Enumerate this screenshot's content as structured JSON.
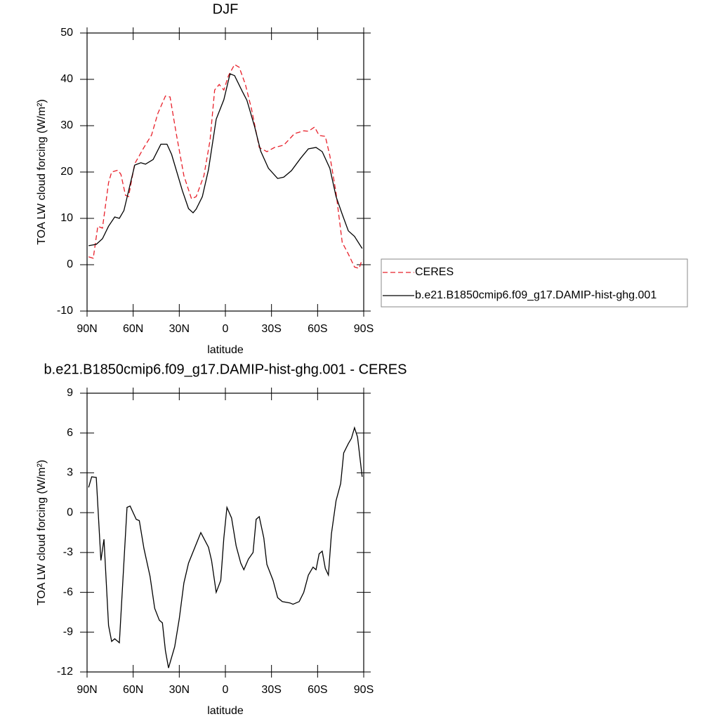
{
  "chart_data": [
    {
      "type": "line",
      "title": "DJF",
      "xlabel": "latitude",
      "ylabel": "TOA LW cloud forcing (W/m²)",
      "xlim": [
        90,
        -90
      ],
      "xticks": [
        {
          "value": 90,
          "label": "90N"
        },
        {
          "value": 60,
          "label": "60N"
        },
        {
          "value": 30,
          "label": "30N"
        },
        0,
        {
          "value": -30,
          "label": "30S"
        },
        {
          "value": -60,
          "label": "60S"
        },
        {
          "value": -90,
          "label": "90S"
        }
      ],
      "ylim": [
        -10,
        50
      ],
      "yticks": [
        -10,
        0,
        10,
        20,
        30,
        40,
        50
      ],
      "legend": "right",
      "series": [
        {
          "name": "CERES",
          "color": "#e8202a",
          "dashed": true,
          "x": [
            89,
            86,
            83,
            80,
            76,
            74,
            70,
            68,
            65,
            63,
            59,
            53,
            48,
            44,
            39,
            36,
            32,
            27,
            22,
            19,
            14,
            10,
            7,
            4,
            1,
            -2,
            -6,
            -9,
            -13,
            -17,
            -22,
            -27,
            -32,
            -38,
            -45,
            -51,
            -54,
            -58,
            -61,
            -65,
            -68,
            -72,
            -76,
            -80,
            -84,
            -87,
            -89
          ],
          "values": [
            1.7,
            1.4,
            8.3,
            7.9,
            17.7,
            20,
            20.4,
            19.5,
            15,
            14.7,
            21.8,
            25.3,
            28,
            32.6,
            36.4,
            36.2,
            28.3,
            19.2,
            14.2,
            14.7,
            19.2,
            26.8,
            37.7,
            38.9,
            37.7,
            40.8,
            43.2,
            42.6,
            38.9,
            33.6,
            25.3,
            24.4,
            25.3,
            25.8,
            28.3,
            28.9,
            28.8,
            29.7,
            27.9,
            27.7,
            23.5,
            15.5,
            4.8,
            2.3,
            -0.5,
            -0.8,
            1.1
          ]
        },
        {
          "name": "b.e21.B1850cmip6.f09_g17.DAMIP-hist-ghg.001",
          "color": "#000000",
          "dashed": false,
          "x": [
            89,
            84,
            80,
            76,
            72,
            69,
            66,
            59,
            55,
            52,
            47,
            42,
            38,
            35,
            28,
            24,
            21,
            19,
            15,
            11,
            6,
            1,
            -3,
            -6,
            -11,
            -14,
            -19,
            -23,
            -28,
            -34,
            -38,
            -43,
            -49,
            -54,
            -59,
            -63,
            -68,
            -72,
            -76,
            -80,
            -84,
            -89
          ],
          "values": [
            4.1,
            4.4,
            5.6,
            8.3,
            10.3,
            10,
            11.7,
            21.5,
            22,
            21.7,
            22.7,
            26,
            26,
            23.8,
            16,
            12.1,
            11.2,
            12,
            14.7,
            20.5,
            31.4,
            35.6,
            41.2,
            40.8,
            37.4,
            35.5,
            29.8,
            24.5,
            20.8,
            18.6,
            18.9,
            20.3,
            23,
            25,
            25.3,
            24.4,
            20.8,
            14.7,
            10.9,
            7.3,
            6.1,
            3.5
          ]
        }
      ]
    },
    {
      "type": "line",
      "title": "b.e21.B1850cmip6.f09_g17.DAMIP-hist-ghg.001 - CERES",
      "xlabel": "latitude",
      "ylabel": "TOA LW cloud forcing (W/m²)",
      "xlim": [
        90,
        -90
      ],
      "xticks": [
        {
          "value": 90,
          "label": "90N"
        },
        {
          "value": 60,
          "label": "60N"
        },
        {
          "value": 30,
          "label": "30N"
        },
        0,
        {
          "value": -30,
          "label": "30S"
        },
        {
          "value": -60,
          "label": "60S"
        },
        {
          "value": -90,
          "label": "90S"
        }
      ],
      "ylim": [
        -12,
        9
      ],
      "yticks": [
        -12,
        -9,
        -6,
        -3,
        0,
        3,
        6,
        9
      ],
      "series": [
        {
          "color": "#000000",
          "dashed": false,
          "x": [
            89,
            87,
            84,
            81,
            79,
            76,
            74,
            72,
            69,
            64,
            62,
            58,
            56,
            53,
            49,
            46,
            43,
            41,
            39,
            37,
            33,
            30,
            27,
            24,
            16,
            11,
            9,
            6,
            3,
            1,
            -1,
            -4,
            -7,
            -10,
            -12,
            -15,
            -18,
            -20,
            -22,
            -25,
            -27,
            -31,
            -34,
            -37,
            -42,
            -44,
            -48,
            -51,
            -54,
            -57,
            -59,
            -61,
            -63,
            -65,
            -67,
            -69,
            -72,
            -75,
            -77,
            -80,
            -82,
            -84,
            -86,
            -89
          ],
          "values": [
            1.9,
            2.7,
            2.65,
            -3.6,
            -2,
            -8.5,
            -9.7,
            -9.5,
            -9.8,
            0.4,
            0.5,
            -0.5,
            -0.6,
            -2.7,
            -4.8,
            -7.2,
            -8.1,
            -8.3,
            -10.4,
            -11.7,
            -10.1,
            -8,
            -5.3,
            -3.8,
            -1.5,
            -2.6,
            -3.6,
            -6,
            -5.1,
            -1.9,
            0.4,
            -0.4,
            -2.5,
            -3.8,
            -4.3,
            -3.5,
            -3,
            -0.5,
            -0.3,
            -1.9,
            -3.9,
            -5.1,
            -6.4,
            -6.7,
            -6.8,
            -6.9,
            -6.7,
            -6,
            -4.7,
            -4.1,
            -4.3,
            -3.1,
            -2.9,
            -4.2,
            -4.7,
            -1.6,
            0.9,
            2.2,
            4.5,
            5.2,
            5.6,
            6.4,
            5.7,
            2.7
          ]
        }
      ]
    }
  ]
}
